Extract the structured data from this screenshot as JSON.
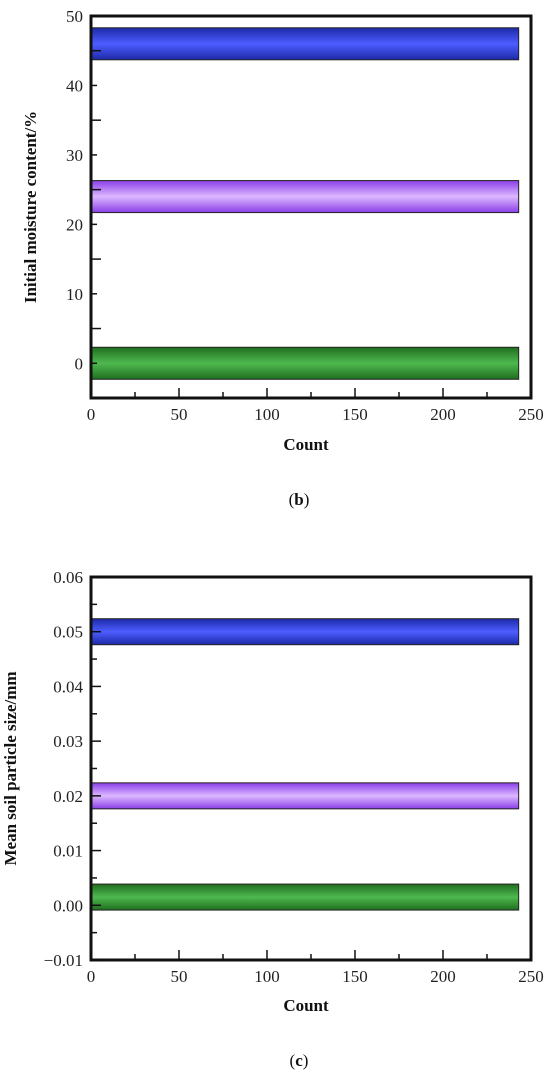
{
  "chart_data": [
    {
      "type": "bar",
      "orientation": "horizontal",
      "panel_label_prefix": "(",
      "panel_label_letter": "b",
      "panel_label_suffix": ")",
      "xlabel": "Count",
      "ylabel": "Initial moisture content/%",
      "xlim": [
        0,
        250
      ],
      "ylim": [
        -5,
        50
      ],
      "xticks": [
        0,
        50,
        100,
        150,
        200,
        250
      ],
      "yticks": [
        0,
        10,
        20,
        30,
        40,
        50
      ],
      "grid": false,
      "bars": [
        {
          "y": 0,
          "count": 243,
          "color": "green"
        },
        {
          "y": 24,
          "count": 243,
          "color": "violet"
        },
        {
          "y": 46,
          "count": 243,
          "color": "blue"
        }
      ]
    },
    {
      "type": "bar",
      "orientation": "horizontal",
      "panel_label_prefix": "(",
      "panel_label_letter": "c",
      "panel_label_suffix": ")",
      "xlabel": "Count",
      "ylabel": "Mean soil particle size/mm",
      "xlim": [
        0,
        250
      ],
      "ylim": [
        -0.01,
        0.06
      ],
      "xticks": [
        0,
        50,
        100,
        150,
        200,
        250
      ],
      "yticks": [
        -0.01,
        0.0,
        0.01,
        0.02,
        0.03,
        0.04,
        0.05,
        0.06
      ],
      "ytick_labels": [
        "−0.01",
        "0.00",
        "0.01",
        "0.02",
        "0.03",
        "0.04",
        "0.05",
        "0.06"
      ],
      "grid": false,
      "bars": [
        {
          "y": 0.0015,
          "count": 243,
          "color": "green"
        },
        {
          "y": 0.02,
          "count": 243,
          "color": "violet"
        },
        {
          "y": 0.05,
          "count": 243,
          "color": "blue"
        }
      ]
    }
  ],
  "colors": {
    "green": {
      "light": "#4fb84f",
      "dark": "#1f6e1f"
    },
    "violet": {
      "light": "#dcb8ff",
      "dark": "#8a3ee8"
    },
    "blue": {
      "light": "#4d5dff",
      "dark": "#1d2aa8"
    }
  }
}
